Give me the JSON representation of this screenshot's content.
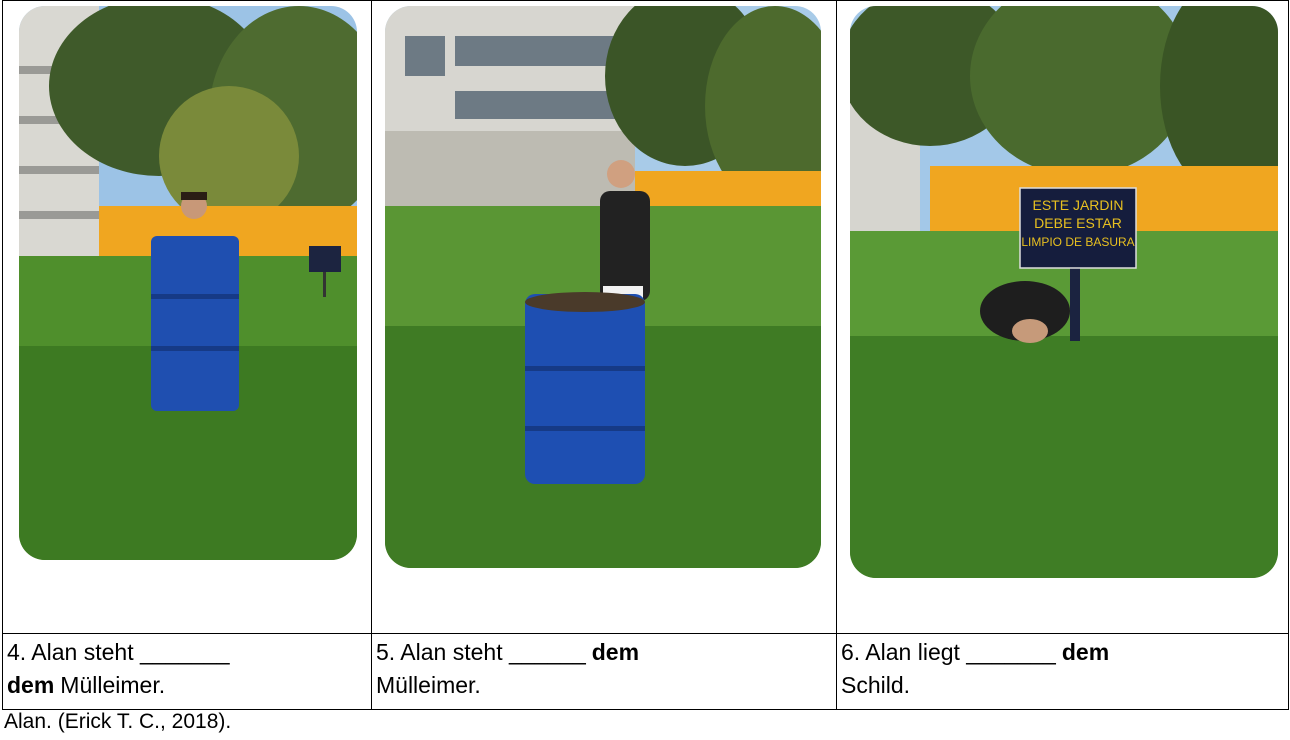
{
  "cells": [
    {
      "lead": "4. Alan steht _______",
      "bold": "dem",
      "rest": "Mülleimer."
    },
    {
      "lead": "5. Alan steht ______",
      "bold": "dem",
      "rest": "Mülleimer."
    },
    {
      "lead": "6. Alan liegt _______",
      "bold": "dem",
      "rest": "Schild."
    }
  ],
  "sign": {
    "line1": "ESTE JARDIN",
    "line2": "DEBE ESTAR",
    "line3": "LIMPIO DE BASURA"
  },
  "caption": "Alan. (Erick T. C., 2018)."
}
